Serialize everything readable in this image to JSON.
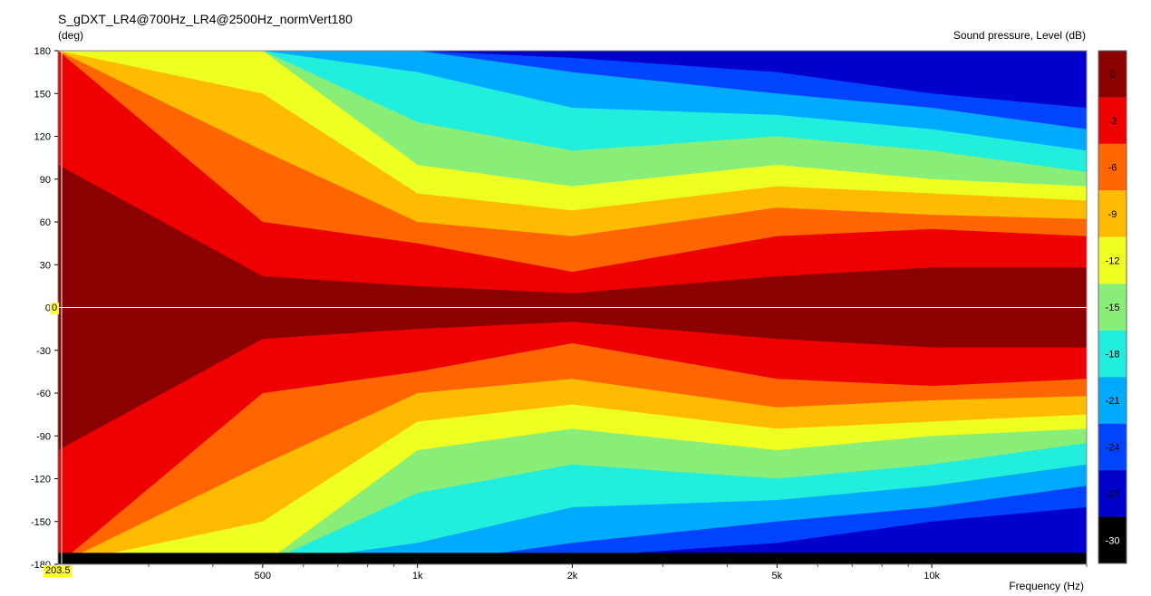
{
  "chart_title": "S_gDXT_LR4@700Hz_LR4@2500Hz_normVert180",
  "y_unit_label": "(deg)",
  "colorbar_label": "Sound pressure, Level  (dB)",
  "x_unit_label": "Frequency  (Hz)",
  "cursor": {
    "y_value": "0",
    "x_value": "203.5"
  },
  "chart_data": {
    "type": "heatmap",
    "title": "S_gDXT_LR4@700Hz_LR4@2500Hz_normVert180",
    "xlabel": "Frequency  (Hz)",
    "ylabel": "(deg)",
    "xscale": "log",
    "xlim": [
      200,
      20000
    ],
    "ylim": [
      -180,
      180
    ],
    "x_ticks": [
      {
        "value": 500,
        "label": "500"
      },
      {
        "value": 1000,
        "label": "1k"
      },
      {
        "value": 2000,
        "label": "2k"
      },
      {
        "value": 5000,
        "label": "5k"
      },
      {
        "value": 10000,
        "label": "10k"
      }
    ],
    "y_ticks": [
      180,
      150,
      120,
      90,
      60,
      30,
      0,
      -30,
      -60,
      -90,
      -120,
      -150,
      -180
    ],
    "colorbar": {
      "label": "Sound pressure, Level  (dB)",
      "levels": [
        0,
        -3,
        -6,
        -9,
        -12,
        -15,
        -18,
        -21,
        -24,
        -27,
        -30
      ],
      "colors": [
        "#8b0000",
        "#ee0000",
        "#ff6600",
        "#ffbb00",
        "#eeff22",
        "#88ee77",
        "#22eedd",
        "#00aaff",
        "#0044ff",
        "#0000cc",
        "#000000"
      ]
    },
    "contour_extent_approx": [
      {
        "level": 0,
        "deg_at_freq": [
          [
            200,
            100
          ],
          [
            500,
            22
          ],
          [
            1000,
            15
          ],
          [
            2000,
            10
          ],
          [
            5000,
            22
          ],
          [
            10000,
            28
          ],
          [
            20000,
            28
          ]
        ]
      },
      {
        "level": -3,
        "deg_at_freq": [
          [
            200,
            180
          ],
          [
            500,
            60
          ],
          [
            1000,
            45
          ],
          [
            2000,
            25
          ],
          [
            5000,
            50
          ],
          [
            10000,
            55
          ],
          [
            20000,
            50
          ]
        ]
      },
      {
        "level": -6,
        "deg_at_freq": [
          [
            200,
            180
          ],
          [
            500,
            110
          ],
          [
            1000,
            60
          ],
          [
            2000,
            50
          ],
          [
            5000,
            70
          ],
          [
            10000,
            65
          ],
          [
            20000,
            62
          ]
        ]
      },
      {
        "level": -9,
        "deg_at_freq": [
          [
            200,
            180
          ],
          [
            500,
            150
          ],
          [
            1000,
            80
          ],
          [
            2000,
            68
          ],
          [
            5000,
            85
          ],
          [
            10000,
            80
          ],
          [
            20000,
            75
          ]
        ]
      },
      {
        "level": -12,
        "deg_at_freq": [
          [
            200,
            180
          ],
          [
            500,
            180
          ],
          [
            1000,
            100
          ],
          [
            2000,
            85
          ],
          [
            5000,
            100
          ],
          [
            10000,
            90
          ],
          [
            20000,
            85
          ]
        ]
      },
      {
        "level": -15,
        "deg_at_freq": [
          [
            200,
            180
          ],
          [
            500,
            180
          ],
          [
            1000,
            130
          ],
          [
            2000,
            110
          ],
          [
            5000,
            120
          ],
          [
            10000,
            110
          ],
          [
            20000,
            95
          ]
        ]
      },
      {
        "level": -18,
        "deg_at_freq": [
          [
            200,
            180
          ],
          [
            500,
            180
          ],
          [
            1000,
            165
          ],
          [
            2000,
            140
          ],
          [
            5000,
            135
          ],
          [
            10000,
            125
          ],
          [
            20000,
            110
          ]
        ]
      },
      {
        "level": -21,
        "deg_at_freq": [
          [
            200,
            180
          ],
          [
            500,
            180
          ],
          [
            1000,
            180
          ],
          [
            2000,
            165
          ],
          [
            5000,
            150
          ],
          [
            10000,
            140
          ],
          [
            20000,
            125
          ]
        ]
      },
      {
        "level": -24,
        "deg_at_freq": [
          [
            200,
            180
          ],
          [
            500,
            180
          ],
          [
            1000,
            180
          ],
          [
            2000,
            175
          ],
          [
            5000,
            165
          ],
          [
            10000,
            150
          ],
          [
            20000,
            140
          ]
        ]
      }
    ]
  }
}
